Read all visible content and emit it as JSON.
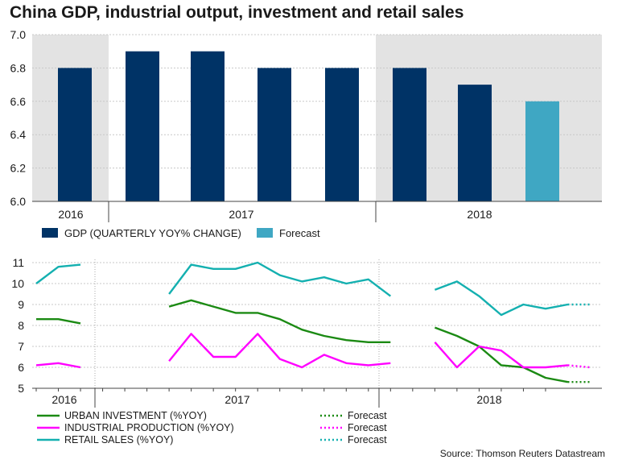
{
  "title": "China GDP, industrial output, investment and retail sales",
  "source": "Source: Thomson Reuters Datastream",
  "colors": {
    "gdp": "#003366",
    "gdp_forecast": "#3fa7c3",
    "shade": "#e3e3e3",
    "urban": "#1b8a13",
    "industrial": "#ff00ff",
    "retail": "#14b0b0",
    "grid": "#c8c8c8"
  },
  "chart_data": [
    {
      "type": "bar",
      "categories": [
        "2016 Q3",
        "2016 Q4",
        "2017 Q1",
        "2017 Q2",
        "2017 Q3",
        "2017 Q4",
        "2018 Q1",
        "2018 Q2"
      ],
      "series": [
        {
          "name": "GDP (QUARTERLY YOY% CHANGE)",
          "values": [
            6.8,
            6.9,
            6.9,
            6.8,
            6.8,
            6.8,
            6.7,
            null
          ]
        },
        {
          "name": "Forecast",
          "values": [
            null,
            null,
            null,
            null,
            null,
            null,
            null,
            6.6
          ]
        }
      ],
      "year_labels": [
        "2016",
        "2017",
        "2018"
      ],
      "ylim": [
        6.0,
        7.0
      ],
      "yticks": [
        "6.0",
        "6.2",
        "6.4",
        "6.6",
        "6.8",
        "7.0"
      ],
      "grid": true,
      "legend_position": "bottom-left"
    },
    {
      "type": "line",
      "ylim": [
        5,
        11
      ],
      "yticks": [
        "5",
        "6",
        "7",
        "8",
        "9",
        "10",
        "11"
      ],
      "year_labels": [
        "2016",
        "2017",
        "2018"
      ],
      "grid": true,
      "legend_position": "bottom-left",
      "series": [
        {
          "name": "URBAN INVESTMENT (%YOY)",
          "color": "urban",
          "segments": [
            [
              [
                "2016-08",
                8.3
              ],
              [
                "2016-09",
                8.3
              ],
              [
                "2016-10",
                8.1
              ]
            ],
            [
              [
                "2017-02",
                8.9
              ],
              [
                "2017-03",
                9.2
              ],
              [
                "2017-04",
                8.9
              ],
              [
                "2017-05",
                8.6
              ],
              [
                "2017-06",
                8.6
              ],
              [
                "2017-07",
                8.3
              ],
              [
                "2017-08",
                7.8
              ],
              [
                "2017-09",
                7.5
              ],
              [
                "2017-10",
                7.3
              ],
              [
                "2017-11",
                7.2
              ],
              [
                "2017-12",
                7.2
              ]
            ],
            [
              [
                "2018-02",
                7.9
              ],
              [
                "2018-03",
                7.5
              ],
              [
                "2018-04",
                7.0
              ],
              [
                "2018-05",
                6.1
              ],
              [
                "2018-06",
                6.0
              ],
              [
                "2018-07",
                5.5
              ],
              [
                "2018-08",
                5.3
              ]
            ]
          ],
          "forecast": [
            [
              "2018-08",
              5.3
            ],
            [
              "2018-09",
              5.3
            ]
          ]
        },
        {
          "name": "INDUSTRIAL PRODUCTION (%YOY)",
          "color": "industrial",
          "segments": [
            [
              [
                "2016-08",
                6.1
              ],
              [
                "2016-09",
                6.2
              ],
              [
                "2016-10",
                6.0
              ]
            ],
            [
              [
                "2017-02",
                6.3
              ],
              [
                "2017-03",
                7.6
              ],
              [
                "2017-04",
                6.5
              ],
              [
                "2017-05",
                6.5
              ],
              [
                "2017-06",
                7.6
              ],
              [
                "2017-07",
                6.4
              ],
              [
                "2017-08",
                6.0
              ],
              [
                "2017-09",
                6.6
              ],
              [
                "2017-10",
                6.2
              ],
              [
                "2017-11",
                6.1
              ],
              [
                "2017-12",
                6.2
              ]
            ],
            [
              [
                "2018-02",
                7.2
              ],
              [
                "2018-03",
                6.0
              ],
              [
                "2018-04",
                7.0
              ],
              [
                "2018-05",
                6.8
              ],
              [
                "2018-06",
                6.0
              ],
              [
                "2018-07",
                6.0
              ],
              [
                "2018-08",
                6.1
              ]
            ]
          ],
          "forecast": [
            [
              "2018-08",
              6.1
            ],
            [
              "2018-09",
              6.0
            ]
          ]
        },
        {
          "name": "RETAIL SALES (%YOY)",
          "color": "retail",
          "segments": [
            [
              [
                "2016-08",
                10.0
              ],
              [
                "2016-09",
                10.8
              ],
              [
                "2016-10",
                10.9
              ]
            ],
            [
              [
                "2017-02",
                9.5
              ],
              [
                "2017-03",
                10.9
              ],
              [
                "2017-04",
                10.7
              ],
              [
                "2017-05",
                10.7
              ],
              [
                "2017-06",
                11.0
              ],
              [
                "2017-07",
                10.4
              ],
              [
                "2017-08",
                10.1
              ],
              [
                "2017-09",
                10.3
              ],
              [
                "2017-10",
                10.0
              ],
              [
                "2017-11",
                10.2
              ],
              [
                "2017-12",
                9.4
              ]
            ],
            [
              [
                "2018-02",
                9.7
              ],
              [
                "2018-03",
                10.1
              ],
              [
                "2018-04",
                9.4
              ],
              [
                "2018-05",
                8.5
              ],
              [
                "2018-06",
                9.0
              ],
              [
                "2018-07",
                8.8
              ],
              [
                "2018-08",
                9.0
              ]
            ]
          ],
          "forecast": [
            [
              "2018-08",
              9.0
            ],
            [
              "2018-09",
              9.0
            ]
          ]
        }
      ],
      "legend": {
        "items": [
          "URBAN INVESTMENT (%YOY)",
          "INDUSTRIAL PRODUCTION (%YOY)",
          "RETAIL SALES (%YOY)"
        ],
        "forecast_label": "Forecast"
      }
    }
  ]
}
